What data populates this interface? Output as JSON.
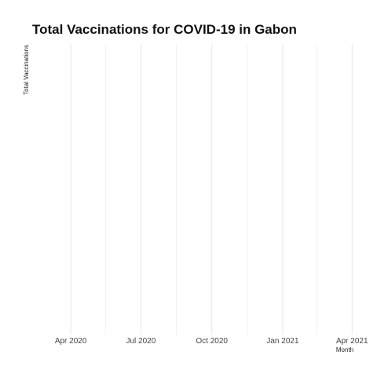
{
  "chart_data": {
    "type": "line",
    "title": "Total Vaccinations for COVID-19 in Gabon",
    "xlabel": "Month",
    "ylabel": "Total Vaccinations",
    "x_ticks": [
      "Apr 2020",
      "Jul 2020",
      "Oct 2020",
      "Jan 2021",
      "Apr 2021"
    ],
    "x_tick_dates": [
      "2020-04-01",
      "2020-07-01",
      "2020-10-01",
      "2021-01-01",
      "2021-04-01"
    ],
    "x_minor_dates": [
      "2020-05-16",
      "2020-08-16",
      "2020-11-16",
      "2021-02-14"
    ],
    "xlim": [
      "2020-02-15",
      "2021-04-15"
    ],
    "series": [],
    "grid": true,
    "legend": "none"
  }
}
